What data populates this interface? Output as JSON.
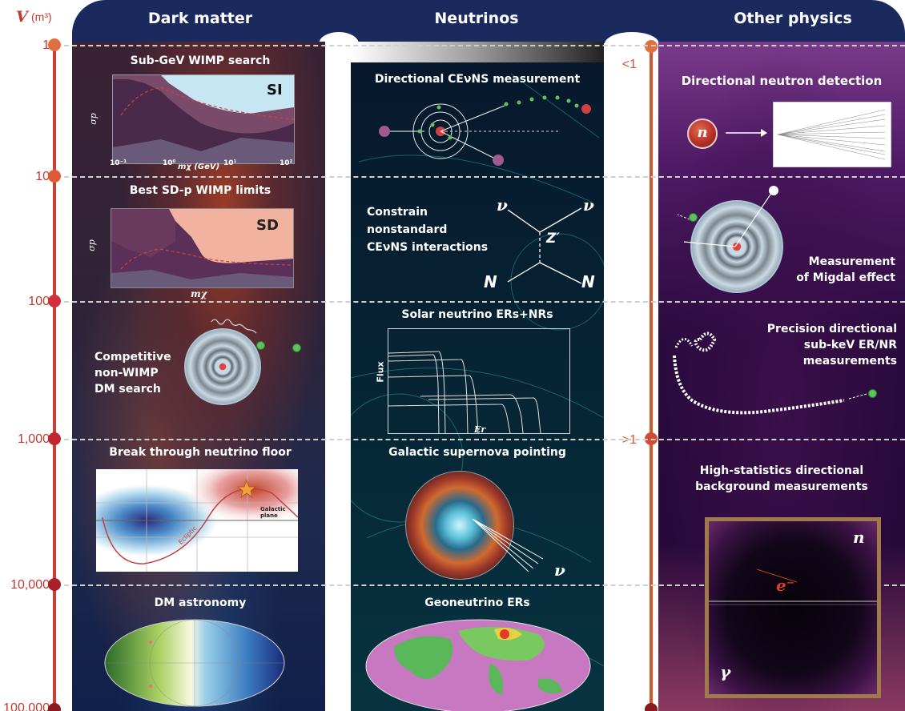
{
  "axis": {
    "symbol": "V",
    "unit": "(m³)",
    "ticks": [
      "1",
      "10",
      "100",
      "1,000",
      "10,000",
      "100,000"
    ],
    "right_ticks": [
      "<1",
      ">1"
    ]
  },
  "columns": {
    "dark_matter": "Dark matter",
    "neutrinos": "Neutrinos",
    "other_physics": "Other physics"
  },
  "dark_matter": {
    "wimp_search": {
      "title": "Sub-GeV WIMP search",
      "label": "SI",
      "ylabel": "σp",
      "xlabel": "mχ (GeV)",
      "xticks": [
        "10⁻¹",
        "10⁰",
        "10¹",
        "10²"
      ]
    },
    "sd_limits": {
      "title": "Best SD-p WIMP limits",
      "label": "SD",
      "ylabel": "σp",
      "xlabel": "mχ"
    },
    "non_wimp": {
      "text_lines": [
        "Competitive",
        "non-WIMP",
        "DM search"
      ]
    },
    "neutrino_floor": {
      "title": "Break through neutrino floor",
      "curve_label": "Ecliptic",
      "plane_label": "Galactic plane"
    },
    "astronomy": {
      "title": "DM astronomy"
    }
  },
  "neutrinos": {
    "cevns": {
      "title": "Directional CEνNS measurement"
    },
    "nonstandard": {
      "text_lines": [
        "Constrain",
        "nonstandard",
        "CEνNS interactions"
      ],
      "nu_left": "ν",
      "nu_right": "ν",
      "boson": "Z′",
      "n_left": "N",
      "n_right": "N"
    },
    "solar": {
      "title": "Solar neutrino ERs+NRs",
      "ylabel": "Flux",
      "xlabel": "Er"
    },
    "supernova": {
      "title": "Galactic supernova pointing",
      "nu": "ν"
    },
    "geo": {
      "title": "Geoneutrino ERs"
    }
  },
  "other": {
    "neutron": {
      "title": "Directional neutron detection",
      "symbol": "n"
    },
    "migdal": {
      "text_lines": [
        "Measurement",
        "of Migdal effect"
      ]
    },
    "precision": {
      "text_lines": [
        "Precision directional",
        "sub-keV ER/NR",
        "measurements"
      ]
    },
    "background": {
      "text_lines": [
        "High-statistics directional",
        "background measurements"
      ],
      "n": "n",
      "e": "e⁻",
      "gamma": "γ"
    }
  },
  "colors": {
    "header": "#1a2a5e",
    "axis": "#c23a2e",
    "axis_right": "#d0582e",
    "si_fill": "#bfe3f2",
    "sd_fill": "#f2b2a0"
  }
}
